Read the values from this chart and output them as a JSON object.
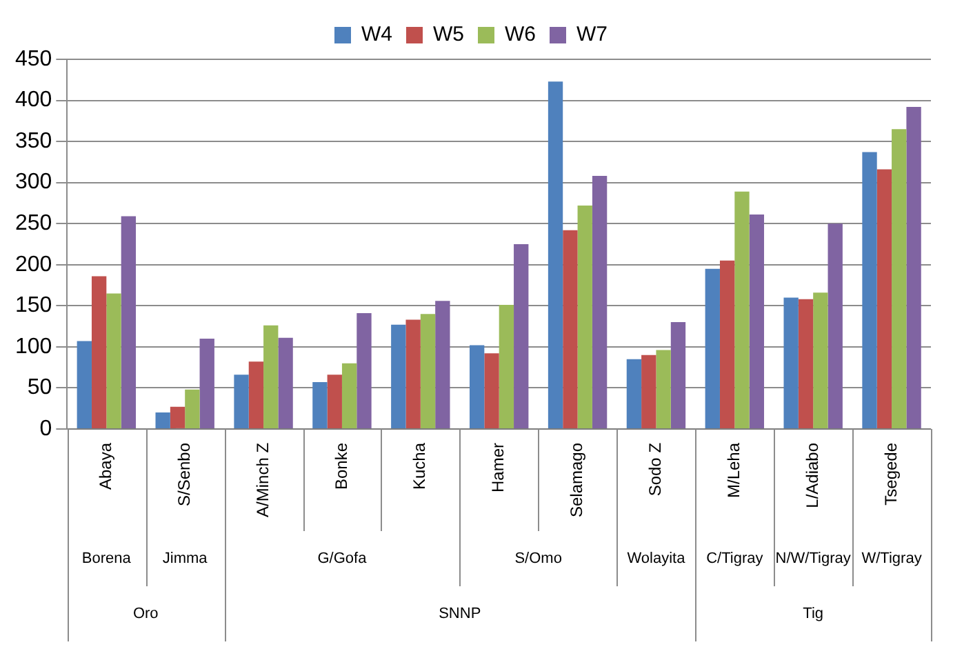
{
  "chart_data": {
    "type": "bar",
    "categories": [
      "Abaya",
      "S/Senbo",
      "A/Minch Z",
      "Bonke",
      "Kucha",
      "Hamer",
      "Selamago",
      "Sodo Z",
      "M/Leha",
      "L/Adiabo",
      "Tsegede"
    ],
    "series": [
      {
        "name": "W4",
        "color": "#4f81bd",
        "values": [
          107,
          20,
          66,
          57,
          127,
          102,
          423,
          85,
          195,
          160,
          337
        ]
      },
      {
        "name": "W5",
        "color": "#c0504d",
        "values": [
          186,
          27,
          82,
          66,
          133,
          92,
          242,
          90,
          205,
          158,
          316
        ]
      },
      {
        "name": "W6",
        "color": "#9bbb59",
        "values": [
          165,
          48,
          126,
          80,
          140,
          151,
          272,
          96,
          289,
          166,
          365
        ]
      },
      {
        "name": "W7",
        "color": "#8064a2",
        "values": [
          259,
          110,
          111,
          141,
          156,
          225,
          308,
          130,
          261,
          250,
          392
        ]
      }
    ],
    "ylim": [
      0,
      450
    ],
    "yticks": [
      0,
      50,
      100,
      150,
      200,
      250,
      300,
      350,
      400,
      450
    ],
    "grid": "y",
    "legend": "top",
    "annotations": [
      "Borena",
      "Jimma",
      "G/Gofa",
      "S/Omo",
      "Wolayita",
      "C/Tigray",
      "N/W/Tigray",
      "W/Tigray",
      "Oro",
      "SNNP",
      "Tig"
    ]
  }
}
